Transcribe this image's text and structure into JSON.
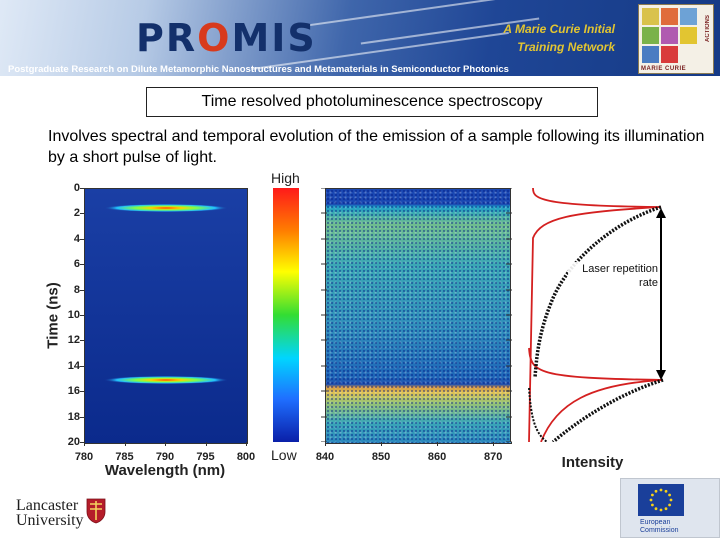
{
  "header": {
    "logo_pro": "PR",
    "logo_o": "O",
    "logo_mis": "MIS",
    "marie_curie_line1": "A Marie Curie Initial",
    "marie_curie_line2": "Training Network",
    "subtitle": "Postgraduate Research on Dilute Metamorphic Nanostructures and Metamaterials in Semiconductor Photonics",
    "mc_logo_caption": "MARIE CURIE",
    "mc_logo_side": "ACTIONS"
  },
  "slide": {
    "title": "Time resolved photoluminescence spectroscopy",
    "intro": "Involves spectral and temporal evolution of the emission of a sample following its illumination by a short pulse of light."
  },
  "chart_data": [
    {
      "type": "heatmap",
      "xlabel": "Wavelength (nm)",
      "ylabel": "Time (ns)",
      "xlim": [
        780,
        800
      ],
      "ylim": [
        20,
        0
      ],
      "x_ticks": [
        "780",
        "785",
        "790",
        "795",
        "800"
      ],
      "y_ticks": [
        "0",
        "2",
        "4",
        "6",
        "8",
        "10",
        "12",
        "14",
        "16",
        "18",
        "20"
      ],
      "emission_peaks": [
        {
          "time_ns": 1.5,
          "center_nm": 790
        },
        {
          "time_ns": 15.0,
          "center_nm": 790
        }
      ]
    },
    {
      "type": "heatmap",
      "x_ticks": [
        "840",
        "850",
        "860",
        "870"
      ],
      "xlim": [
        840,
        873
      ],
      "ylim": [
        20,
        0
      ],
      "emission_onsets_ns": [
        1.5,
        15.0
      ]
    },
    {
      "type": "line",
      "xlabel": "Intensity",
      "annotation": "Laser repetition rate",
      "ylim": [
        20,
        0
      ],
      "pulse_times_ns": [
        1.5,
        15.0
      ]
    }
  ],
  "colorbar": {
    "high_label": "High",
    "low_label": "Low",
    "colors": [
      "#ff1a1a",
      "#ff7f00",
      "#ffff00",
      "#33dd33",
      "#00d5ff",
      "#1f6fff",
      "#0a1fa8"
    ]
  },
  "footer": {
    "lancaster_line1": "Lancaster",
    "lancaster_line2": "University",
    "eu_line1": "European",
    "eu_line2": "Commission"
  },
  "colors": {
    "banner_dark": "#153a86",
    "banner_light": "#dfe9f6",
    "logo_text": "#13306b",
    "logo_accent": "#d83a1c",
    "marie_curie_text": "#e2c531"
  }
}
